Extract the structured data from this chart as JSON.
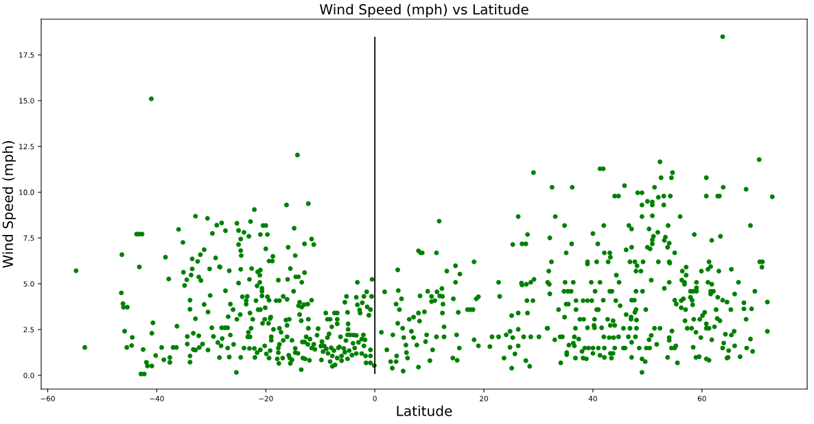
{
  "chart_data": {
    "type": "scatter",
    "title": "Wind Speed (mph) vs Latitude",
    "xlabel": "Latitude",
    "ylabel": "Wind Speed (mph)",
    "xlim": [
      -61.2,
      79.3
    ],
    "ylim": [
      -0.75,
      19.45
    ],
    "xticks": [
      {
        "value": -60,
        "label": "−60"
      },
      {
        "value": -40,
        "label": "−40"
      },
      {
        "value": -20,
        "label": "−20"
      },
      0,
      20,
      40,
      60
    ],
    "yticks": [
      {
        "value": 0,
        "label": "0.0"
      },
      2.5,
      {
        "value": 5,
        "label": "5.0"
      },
      7.5,
      {
        "value": 10,
        "label": "10.0"
      },
      12.5,
      {
        "value": 15,
        "label": "15.0"
      },
      17.5
    ],
    "marker": "circle",
    "ref_lines": [
      {
        "axis": "x",
        "value": 0,
        "color": "#000000",
        "line_style": "solid"
      }
    ],
    "series": [
      {
        "color": "#008000",
        "x": [
          -54.8,
          -53.2,
          -41.0,
          -46.4,
          -43.2,
          -43.7,
          -43.2,
          -42.7,
          -46.5,
          -46.2,
          -46.1,
          -45.4,
          -45.9,
          -44.5,
          -45.5,
          -44.6,
          -42.5,
          -42.9,
          -42.3,
          -41.9,
          -41.7,
          -40.9,
          -40.9,
          -40.7,
          -40.2,
          -39.1,
          -38.7,
          -37.6,
          -37.6,
          -38.4,
          -37.8,
          -37.0,
          -36.4,
          -36.3,
          -36.0,
          -35.2,
          -35.1,
          -34.9,
          -34.5,
          -33.7,
          -33.5,
          -33.5,
          -32.9,
          -33.9,
          -33.9,
          -32.9,
          -34.4,
          -34.4,
          -33.3,
          -33.9,
          -33.9,
          -30.7,
          -29.0,
          -28.1,
          -29.8,
          -27.4,
          -30.3,
          -28.5,
          -29.2,
          -26.7,
          -27.4,
          -30.2,
          -31.3,
          -30.6,
          -26.9,
          -29.9,
          -28.1,
          -27.5,
          -27.0,
          -31.3,
          -32.0,
          -32.5,
          -32.3,
          -31.9,
          -33.3,
          -32.9,
          -32.2,
          -31.6,
          -32.3,
          -29.6,
          -28.0,
          -28.8,
          -30.6,
          -28.5,
          -26.7,
          -26.5,
          -26.0,
          -26.5,
          -27.0,
          -14.2,
          -22.1,
          -16.2,
          -12.2,
          -25.3,
          -22.8,
          -20.5,
          -20.0,
          -21.0,
          -19.7,
          -14.8,
          -25.0,
          -24.0,
          -23.1,
          -24.6,
          -25.0,
          -24.6,
          -24.5,
          -20.0,
          -18.7,
          -19.4,
          -18.8,
          -15.9,
          -14.6,
          -12.9,
          -11.2,
          -11.6,
          -28.4,
          -24.6,
          -22.6,
          -21.0,
          -21.5,
          -21.1,
          -15.5,
          -16.0,
          -14.5,
          -14.0,
          -12.9,
          -13.4,
          -17.7,
          -23.0,
          -25.0,
          -21.1,
          -21.6,
          -20.7,
          -20.7,
          -20.7,
          -14.9,
          -24.3,
          -23.4,
          -23.6,
          -23.6,
          -21.8,
          -19.7,
          -19.4,
          -18.1,
          -17.5,
          -16.8,
          -16.1,
          -13.8,
          -14.0,
          -13.4,
          -13.0,
          -12.3,
          -11.6,
          -21.4,
          -21.0,
          -20.1,
          -22.9,
          -24.7,
          -25.3,
          -22.4,
          -20.2,
          -19.2,
          -19.1,
          -20.6,
          -19.5,
          -16.3,
          -15.7,
          -16.1,
          -13.5,
          -12.2,
          -13.8,
          -22.7,
          -23.2,
          -23.3,
          -22.9,
          -28.2,
          -25.9,
          -18.6,
          -17.5,
          -17.2,
          -19.0,
          -19.0,
          -16.1,
          -15.2,
          -16.8,
          -17.5,
          -17.7,
          -17.7,
          -17.6,
          -17.9,
          -16.9,
          -13.5,
          -25.4,
          -24.6,
          -24.0,
          -23.0,
          -22.1,
          -21.6,
          -22.0,
          -21.0,
          -20.2,
          -19.9,
          -19.4,
          -19.2,
          -15.6,
          -15.8,
          -15.2,
          -15.5,
          -14.6,
          -14.1,
          -14.6,
          -13.3,
          -12.9,
          -12.3,
          -13.2,
          -12.8,
          -12.0,
          -12.6,
          -11.9,
          -11.6,
          -11.2,
          -11.0,
          -10.6,
          -10.4,
          -12.2,
          -9.7,
          -9.3,
          -9.8,
          -9.0,
          -8.7,
          -8.2,
          -7.9,
          -8.4,
          -8.7,
          -7.4,
          -6.9,
          -6.9,
          -6.9,
          -8.2,
          -7.8,
          -7.3,
          -7.8,
          -6.9,
          -6.1,
          -6.1,
          -5.0,
          -5.5,
          -4.7,
          -6.5,
          -5.7,
          -5.3,
          -5.5,
          -5.2,
          -5.0,
          -4.9,
          -4.9,
          -5.0,
          -4.5,
          -3.2,
          -3.4,
          -3.2,
          -2.8,
          -2.7,
          -2.3,
          -2.0,
          -1.5,
          -0.5,
          -0.6,
          -1.4,
          -0.8,
          -1.1,
          -3.4,
          -2.1,
          -2.4,
          -1.8,
          -3.0,
          -2.4,
          -3.4,
          -3.7,
          -2.0,
          -1.7,
          -1.6,
          -0.8,
          -0.8,
          -0.8,
          -0.1,
          -9.9,
          -9.5,
          -8.9,
          -8.6,
          -8.0,
          -7.5,
          -6.7,
          -6.3,
          -4.0,
          -3.9,
          -4.2,
          29.1,
          26.3,
          11.8,
          28.0,
          25.3,
          27.0,
          27.7,
          8.0,
          8.4,
          8.7,
          11.3,
          4.2,
          13.2,
          14.8,
          15.6,
          14.8,
          18.2,
          22.7,
          22.9,
          26.9,
          27.0,
          27.8,
          28.6,
          29.2,
          27.9,
          29.0,
          28.0,
          26.3,
          25.1,
          1.8,
          4.3,
          4.9,
          3.9,
          4.5,
          8.3,
          9.7,
          10.4,
          10.4,
          11.0,
          11.4,
          11.9,
          12.3,
          12.4,
          12.5,
          12.4,
          14.4,
          15.3,
          18.6,
          19.0,
          17.0,
          17.5,
          18.0,
          1.2,
          2.2,
          2.9,
          3.2,
          3.9,
          4.0,
          5.2,
          4.2,
          3.3,
          5.1,
          5.3,
          6.7,
          6.3,
          7.1,
          8.0,
          9.1,
          8.2,
          7.1,
          7.7,
          5.7,
          5.8,
          6.0,
          8.0,
          10.1,
          9.3,
          9.5,
          10.6,
          11.3,
          12.7,
          12.7,
          15.0,
          15.5,
          14.3,
          15.1,
          18.2,
          19.0,
          21.1,
          21.5,
          22.7,
          23.7,
          24.1,
          24.8,
          25.3,
          24.8,
          25.7,
          26.3,
          26.3,
          25.1,
          27.7,
          28.4,
          27.3,
          28.6,
          30.1,
          31.6,
          52.3,
          41.3,
          41.9,
          54.6,
          52.5,
          54.4,
          32.5,
          36.2,
          45.8,
          51.3,
          44.0,
          44.7,
          48.2,
          49.0,
          50.0,
          50.9,
          50.9,
          49.0,
          52.0,
          53.0,
          54.2,
          53.0,
          33.1,
          34.8,
          42.0,
          46.6,
          47.1,
          49.0,
          50.9,
          50.3,
          51.9,
          53.8,
          32.1,
          40.0,
          36.1,
          40.9,
          51.1,
          50.9,
          50.9,
          53.1,
          53.3,
          54.0,
          53.7,
          35.1,
          42.1,
          43.1,
          43.2,
          46.1,
          47.1,
          50.0,
          50.5,
          55.0,
          32.4,
          39.0,
          39.0,
          40.7,
          42.8,
          46.8,
          47.7,
          48.1,
          49.2,
          52.0,
          54.0,
          47.9,
          48.8,
          31.9,
          44.3,
          31.7,
          32.0,
          34.9,
          36.4,
          39.7,
          41.3,
          44.8,
          50.7,
          53.1,
          54.0,
          32.1,
          34.7,
          35.4,
          36.0,
          40.4,
          43.1,
          43.5,
          47.9,
          49.1,
          36.9,
          38.2,
          39.0,
          39.8,
          41.9,
          44.2,
          47.1,
          47.6,
          55.0,
          55.3,
          35.1,
          35.5,
          33.7,
          36.9,
          40.7,
          41.0,
          45.0,
          47.9,
          49.7,
          47.7,
          34.8,
          37.6,
          38.3,
          40.3,
          42.7,
          43.7,
          46.1,
          47.0,
          47.0,
          48.0,
          31.7,
          36.8,
          39.0,
          40.3,
          41.6,
          40.2,
          43.2,
          44.0,
          45.6,
          46.8,
          48.0,
          51.3,
          52.3,
          54.5,
          33.0,
          34.0,
          34.4,
          36.6,
          37.4,
          42.0,
          43.0,
          43.8,
          44.7,
          46.5,
          47.8,
          47.1,
          50.7,
          50.3,
          54.0,
          54.0,
          35.6,
          36.4,
          36.6,
          38.0,
          38.5,
          39.2,
          40.0,
          41.0,
          42.1,
          44.0,
          45.6,
          45.9,
          48.5,
          49.8,
          50.4,
          51.7,
          54.4,
          55.2,
          35.2,
          35.2,
          36.8,
          38.2,
          38.8,
          40.0,
          41.3,
          42.1,
          43.4,
          43.2,
          43.7,
          47.1,
          49.0,
          49.6,
          53.7,
          55.5,
          34.1,
          49.0,
          63.8,
          70.5,
          60.8,
          63.9,
          68.1,
          60.8,
          62.9,
          63.2,
          72.9,
          56.0,
          68.9,
          58.6,
          63.4,
          61.8,
          54.1,
          61.3,
          61.6,
          61.1,
          63.1,
          65.4,
          59.9,
          56.4,
          57.1,
          57.1,
          70.6,
          71.1,
          71.0,
          56.3,
          56.8,
          56.8,
          59.0,
          59.0,
          61.1,
          61.8,
          66.7,
          57.9,
          58.4,
          59.0,
          61.6,
          61.6,
          62.1,
          66.0,
          69.7,
          56.2,
          56.6,
          57.9,
          58.2,
          58.3,
          62.9,
          63.8,
          64.6,
          67.7,
          72.0,
          56.2,
          57.0,
          62.6,
          65.3,
          67.7,
          69.1,
          56.9,
          58.5,
          59.6,
          60.1,
          60.5,
          62.8,
          63.3,
          68.1,
          57.3,
          58.1,
          60.8,
          61.3,
          60.8,
          62.3,
          72.0,
          55.0,
          58.9,
          59.8,
          61.8,
          64.3,
          65.4,
          65.9,
          64.0,
          63.8,
          64.9,
          66.0,
          68.2,
          68.9,
          69.3,
          58.4,
          58.9,
          59.5,
          60.8,
          61.3,
          64.6,
          64.8,
          67.0
        ],
        "values": [
          5.71,
          1.52,
          15.1,
          6.59,
          5.92,
          7.71,
          7.71,
          7.71,
          4.5,
          3.92,
          3.72,
          3.72,
          2.41,
          2.07,
          1.52,
          1.63,
          1.41,
          0.07,
          0.07,
          0.71,
          0.51,
          0.51,
          2.3,
          2.87,
          1.08,
          1.52,
          0.85,
          0.97,
          0.71,
          6.45,
          5.26,
          1.52,
          1.52,
          2.68,
          7.97,
          7.26,
          5.63,
          4.91,
          5.22,
          5.48,
          5.81,
          6.36,
          8.69,
          4.1,
          3.61,
          3.09,
          2.12,
          1.71,
          2.3,
          0.72,
          1.06,
          8.57,
          8.2,
          8.32,
          7.75,
          7.9,
          5.81,
          5.93,
          6.41,
          5.71,
          4.62,
          4.36,
          3.87,
          3.46,
          3.2,
          2.6,
          2.6,
          2.6,
          2.6,
          6.86,
          6.59,
          6.22,
          5.37,
          5.18,
          1.41,
          1.38,
          1.52,
          1.71,
          2.16,
          2.12,
          2.01,
          1.79,
          1.38,
          0.97,
          1.0,
          3.89,
          3.59,
          2.2,
          1.49,
          12.03,
          9.05,
          9.3,
          9.38,
          8.3,
          8.4,
          8.18,
          8.18,
          7.69,
          7.69,
          8.03,
          7.91,
          7.81,
          7.59,
          7.44,
          7.14,
          6.81,
          6.54,
          6.91,
          6.5,
          6.24,
          6.24,
          6.99,
          6.54,
          7.18,
          7.14,
          7.44,
          5.91,
          5.79,
          5.83,
          5.75,
          5.65,
          5.47,
          5.83,
          5.24,
          5.38,
          5.38,
          5.61,
          5.08,
          5.2,
          5.24,
          5.04,
          5.08,
          4.89,
          4.75,
          4.59,
          4.34,
          4.59,
          4.29,
          4.31,
          4.08,
          3.89,
          4.08,
          4.29,
          4.1,
          4.08,
          4.08,
          4.31,
          4.15,
          3.99,
          3.8,
          3.73,
          3.86,
          3.89,
          4.1,
          3.59,
          3.59,
          3.69,
          3.4,
          3.32,
          3.06,
          3.06,
          3.06,
          3.1,
          3.18,
          2.84,
          2.84,
          3.02,
          3.06,
          2.73,
          2.98,
          3.06,
          3.32,
          2.57,
          2.35,
          2.1,
          2.1,
          1.61,
          1.69,
          2.51,
          2.57,
          2.35,
          2.1,
          1.91,
          2.1,
          1.91,
          1.91,
          1.69,
          1.49,
          1.24,
          0.65,
          0.9,
          0.94,
          0.31,
          0.16,
          0.98,
          1.49,
          1.47,
          1.47,
          1.24,
          0.98,
          1.39,
          1.61,
          1.17,
          0.94,
          1.35,
          0.94,
          1.09,
          0.84,
          0.65,
          1.24,
          1.2,
          1.47,
          1.82,
          1.82,
          1.69,
          0.94,
          0.9,
          0.82,
          2.1,
          1.98,
          1.49,
          1.69,
          1.42,
          2.19,
          2.55,
          2.57,
          1.84,
          1.61,
          0.84,
          3.4,
          3.06,
          3.06,
          2.65,
          2.26,
          2.06,
          3.4,
          3.4,
          3.06,
          2.81,
          0.75,
          0.49,
          0.57,
          1.06,
          0.94,
          0.8,
          1.06,
          0.9,
          1.26,
          1.35,
          1.55,
          1.47,
          1.9,
          3.99,
          4.31,
          3.44,
          2.81,
          2.51,
          2.21,
          2.21,
          5.08,
          4.26,
          3.85,
          3.57,
          3.4,
          3.96,
          4.31,
          4.56,
          5.24,
          4.31,
          3.74,
          3.59,
          3.28,
          2.18,
          2.21,
          1.98,
          1.94,
          1.8,
          1.19,
          1.19,
          1.49,
          1.61,
          1.06,
          0.68,
          0.68,
          1.06,
          1.39,
          0.53,
          1.6,
          1.3,
          1.45,
          1.2,
          1.5,
          1.35,
          1.5,
          2.1,
          1.75,
          2.2,
          1.1,
          11.07,
          8.67,
          8.42,
          7.69,
          7.14,
          7.18,
          7.18,
          6.8,
          6.69,
          6.69,
          6.69,
          5.76,
          5.69,
          5.98,
          5.53,
          5.08,
          6.2,
          5.08,
          4.31,
          5.04,
          4.93,
          4.97,
          5.08,
          5.24,
          4.08,
          4.08,
          3.4,
          3.4,
          3.26,
          4.56,
          4.63,
          4.18,
          3.89,
          3.59,
          4.34,
          4.59,
          4.31,
          4.03,
          4.08,
          4.56,
          4.34,
          4.74,
          4.31,
          3.89,
          3.4,
          4.18,
          3.44,
          4.18,
          4.29,
          3.59,
          3.59,
          3.59,
          2.35,
          1.39,
          0.75,
          0.39,
          0.75,
          1.06,
          0.23,
          2.84,
          2.21,
          2.57,
          2.06,
          2.4,
          3.06,
          3.18,
          3.4,
          3.47,
          2.96,
          2.06,
          1.65,
          1.65,
          1.24,
          0.94,
          0.45,
          0.8,
          1.84,
          2.21,
          1.39,
          2.1,
          2.1,
          2.65,
          2.21,
          1.49,
          0.94,
          0.82,
          1.94,
          1.61,
          1.57,
          2.1,
          2.1,
          0.94,
          2.21,
          2.4,
          2.06,
          1.53,
          1.17,
          1.61,
          2.51,
          0.39,
          0.8,
          0.49,
          2.1,
          2.1,
          2.1,
          2.57,
          11.66,
          11.28,
          11.28,
          11.07,
          10.79,
          10.79,
          10.27,
          10.27,
          10.36,
          10.27,
          9.79,
          9.79,
          9.97,
          9.97,
          9.5,
          9.46,
          9.3,
          9.3,
          9.72,
          9.79,
          9.79,
          9.3,
          8.67,
          8.18,
          8.18,
          8.18,
          7.99,
          8.67,
          8.71,
          7.99,
          7.81,
          8.18,
          7.51,
          7.74,
          7.18,
          7.18,
          7.59,
          7.4,
          7.18,
          7.37,
          7.55,
          7.22,
          6.99,
          6.69,
          6.69,
          6.69,
          6.45,
          6.85,
          6.99,
          6.99,
          6.91,
          6.69,
          6.2,
          6.2,
          6.08,
          6.2,
          6.2,
          6.2,
          6.2,
          5.98,
          6.2,
          6.2,
          6.2,
          5.69,
          5.69,
          5.69,
          5.47,
          5.08,
          4.97,
          5.08,
          5.08,
          5.08,
          5.08,
          5.08,
          5.2,
          4.75,
          5.08,
          4.45,
          4.59,
          4.59,
          4.59,
          4.59,
          4.59,
          4.59,
          4.59,
          4.59,
          4.08,
          4.08,
          4.08,
          4.08,
          4.1,
          4.08,
          4.1,
          4.1,
          4.1,
          3.89,
          3.89,
          3.89,
          3.59,
          3.59,
          3.59,
          3.59,
          3.8,
          3.59,
          3.59,
          3.44,
          3.18,
          3.06,
          3.06,
          3.06,
          3.06,
          2.98,
          3.32,
          3.18,
          3.06,
          3.02,
          2.57,
          2.57,
          2.6,
          2.6,
          2.6,
          2.73,
          2.73,
          2.73,
          2.57,
          2.57,
          2.57,
          2.57,
          2.57,
          2.42,
          1.94,
          2.1,
          2.1,
          2.1,
          1.98,
          2.1,
          2.06,
          2.06,
          2.1,
          2.1,
          2.1,
          1.8,
          2.18,
          1.94,
          2.06,
          1.91,
          1.65,
          1.76,
          1.61,
          1.31,
          1.49,
          1.49,
          1.49,
          1.49,
          1.49,
          1.49,
          1.49,
          1.49,
          1.49,
          1.49,
          1.49,
          1.69,
          1.49,
          1.61,
          1.24,
          1.13,
          0.94,
          0.94,
          0.9,
          1.2,
          1.09,
          0.98,
          0.94,
          1.2,
          1.2,
          0.98,
          0.9,
          0.75,
          0.98,
          0.68,
          0.68,
          0.16,
          18.49,
          11.78,
          10.79,
          10.27,
          10.16,
          9.79,
          9.79,
          9.79,
          9.75,
          8.67,
          8.18,
          7.69,
          7.59,
          7.37,
          6.13,
          6.2,
          5.94,
          5.79,
          5.69,
          5.79,
          5.69,
          5.69,
          5.91,
          5.47,
          6.2,
          6.2,
          5.91,
          5.2,
          5.08,
          4.97,
          5.08,
          4.78,
          5.08,
          4.97,
          5.08,
          4.59,
          4.59,
          4.59,
          4.59,
          4.44,
          4.59,
          4.44,
          4.59,
          4.08,
          4.18,
          4.26,
          4.1,
          3.85,
          4.26,
          4.1,
          4.0,
          3.96,
          4.0,
          3.69,
          3.59,
          3.59,
          3.59,
          3.63,
          3.63,
          2.98,
          3.06,
          3.06,
          3.26,
          3.44,
          3.1,
          2.98,
          3.06,
          2.57,
          2.57,
          2.57,
          2.57,
          2.81,
          2.65,
          2.4,
          1.49,
          2.35,
          2.06,
          1.94,
          2.24,
          2.2,
          2.4,
          1.76,
          1.49,
          1.35,
          1.61,
          1.49,
          1.98,
          1.31,
          1.53,
          0.98,
          1.02,
          0.9,
          0.82,
          0.94,
          0.98,
          1.02
        ]
      }
    ]
  }
}
